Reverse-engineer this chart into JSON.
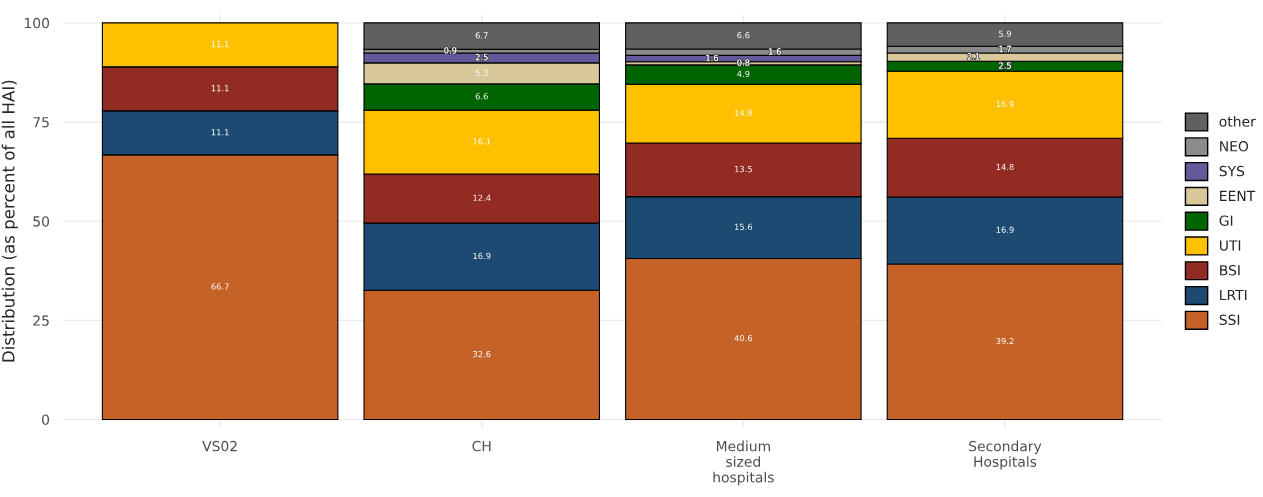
{
  "chart_data": {
    "type": "bar",
    "stacked": true,
    "ylabel": "Distribution (as percent of all HAI)",
    "categories": [
      "VS02",
      "CH",
      "Medium\nsized\nhospitals",
      "Secondary\nHospitals"
    ],
    "series": [
      {
        "name": "SSI",
        "color": "#c46227",
        "values": [
          66.7,
          32.6,
          40.6,
          39.2
        ]
      },
      {
        "name": "LRTI",
        "color": "#1c4a72",
        "values": [
          11.1,
          16.9,
          15.6,
          16.9
        ]
      },
      {
        "name": "BSI",
        "color": "#922b21",
        "values": [
          11.1,
          12.4,
          13.5,
          14.8
        ]
      },
      {
        "name": "UTI",
        "color": "#ffc000",
        "values": [
          11.1,
          16.1,
          14.8,
          16.9
        ]
      },
      {
        "name": "GI",
        "color": "#006400",
        "values": [
          null,
          6.6,
          4.9,
          2.5
        ]
      },
      {
        "name": "EENT",
        "color": "#d9c89a",
        "values": [
          null,
          5.3,
          0.8,
          2.1
        ]
      },
      {
        "name": "SYS",
        "color": "#635a9b",
        "values": [
          null,
          2.5,
          1.6,
          null
        ]
      },
      {
        "name": "NEO",
        "color": "#8c8c8c",
        "values": [
          null,
          0.9,
          1.6,
          1.7
        ]
      },
      {
        "name": "other",
        "color": "#606060",
        "values": [
          null,
          6.7,
          6.6,
          5.9
        ]
      }
    ],
    "ylim": [
      -2,
      102
    ],
    "yticks": [
      0,
      25,
      50,
      75,
      100
    ],
    "grid": true,
    "legend": "right",
    "data_labels": true
  }
}
